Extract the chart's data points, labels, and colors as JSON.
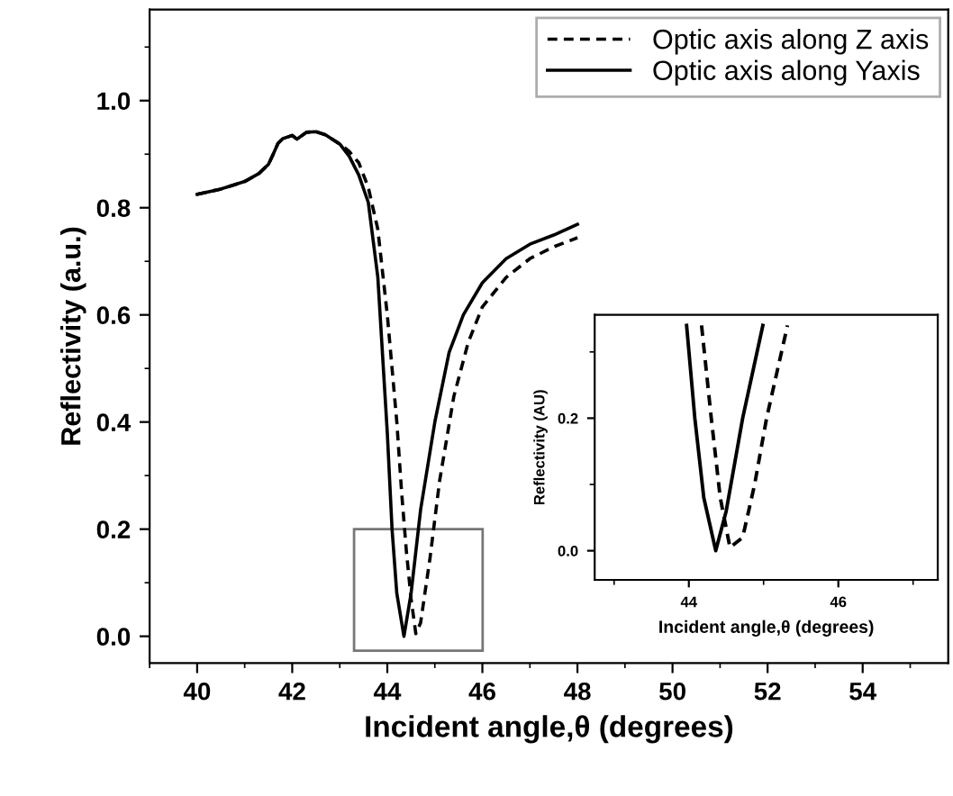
{
  "chart_data": [
    {
      "type": "line",
      "xlabel": "Incident angle,θ (degrees)",
      "ylabel": "Reflectivity (a.u.)",
      "xlim": [
        39,
        55.8
      ],
      "xticks": [
        40,
        42,
        44,
        46,
        48,
        50,
        52,
        54
      ],
      "ylim": [
        -0.05,
        1.17
      ],
      "yticks": [
        {
          "value": 0,
          "label": "0.0"
        },
        {
          "value": 0.2,
          "label": "0.2"
        },
        {
          "value": 0.4,
          "label": "0.4"
        },
        {
          "value": 0.6,
          "label": "0.6"
        },
        {
          "value": 0.8,
          "label": "0.8"
        },
        {
          "value": 1.0,
          "label": "1.0"
        }
      ],
      "grid": false,
      "legend": "top right",
      "marker": "none",
      "series": [
        {
          "name": "Optic axis along Z axis",
          "color": "#000000",
          "line_style": "dashed",
          "x": [
            40.0,
            40.5,
            41.0,
            41.3,
            41.5,
            41.6,
            41.7,
            41.8,
            42.0,
            42.1,
            42.3,
            42.5,
            42.7,
            43.0,
            43.2,
            43.4,
            43.6,
            43.8,
            44.0,
            44.2,
            44.3,
            44.4,
            44.5,
            44.6,
            44.7,
            44.9,
            45.1,
            45.4,
            45.7,
            46.0,
            46.5,
            47.0,
            47.5,
            48.0
          ],
          "values": [
            0.825,
            0.835,
            0.849,
            0.864,
            0.881,
            0.9,
            0.92,
            0.929,
            0.935,
            0.928,
            0.941,
            0.942,
            0.936,
            0.919,
            0.905,
            0.884,
            0.838,
            0.76,
            0.6,
            0.4,
            0.27,
            0.16,
            0.07,
            0.005,
            0.025,
            0.147,
            0.29,
            0.448,
            0.548,
            0.615,
            0.67,
            0.705,
            0.727,
            0.744
          ]
        },
        {
          "name": "Optic axis along Yaxis",
          "color": "#000000",
          "line_style": "solid",
          "x": [
            40.0,
            40.5,
            41.0,
            41.3,
            41.5,
            41.6,
            41.7,
            41.8,
            42.0,
            42.1,
            42.3,
            42.5,
            42.7,
            43.0,
            43.2,
            43.4,
            43.6,
            43.8,
            44.0,
            44.1,
            44.2,
            44.35,
            44.5,
            44.7,
            45.0,
            45.3,
            45.6,
            46.0,
            46.5,
            47.0,
            47.5,
            48.0
          ],
          "values": [
            0.825,
            0.835,
            0.849,
            0.864,
            0.881,
            0.9,
            0.92,
            0.929,
            0.935,
            0.928,
            0.941,
            0.942,
            0.936,
            0.919,
            0.896,
            0.861,
            0.81,
            0.671,
            0.38,
            0.2,
            0.08,
            0.0,
            0.08,
            0.236,
            0.4,
            0.53,
            0.6,
            0.66,
            0.705,
            0.732,
            0.749,
            0.769
          ]
        }
      ]
    },
    {
      "type": "line",
      "xlabel": "Incident angle,θ (degrees)",
      "ylabel": "Reflectivity (AU)",
      "xlim": [
        42.74,
        47.33
      ],
      "xticks": [
        44,
        46
      ],
      "ylim": [
        -0.044,
        0.356
      ],
      "yticks": [
        {
          "value": 0,
          "label": "0.0"
        },
        {
          "value": 0.2,
          "label": "0.2"
        }
      ],
      "grid": false,
      "marker": "none",
      "series": [
        {
          "color": "#000000",
          "line_style": "dashed",
          "x": [
            44.17,
            44.3,
            44.42,
            44.55,
            44.72,
            44.88,
            45.04,
            45.32
          ],
          "values": [
            0.34,
            0.2,
            0.08,
            0.005,
            0.02,
            0.1,
            0.2,
            0.34
          ]
        },
        {
          "color": "#000000",
          "line_style": "solid",
          "x": [
            43.97,
            44.08,
            44.2,
            44.36,
            44.5,
            44.72,
            44.99
          ],
          "values": [
            0.34,
            0.2,
            0.08,
            0.0,
            0.06,
            0.2,
            0.34
          ]
        }
      ]
    }
  ]
}
